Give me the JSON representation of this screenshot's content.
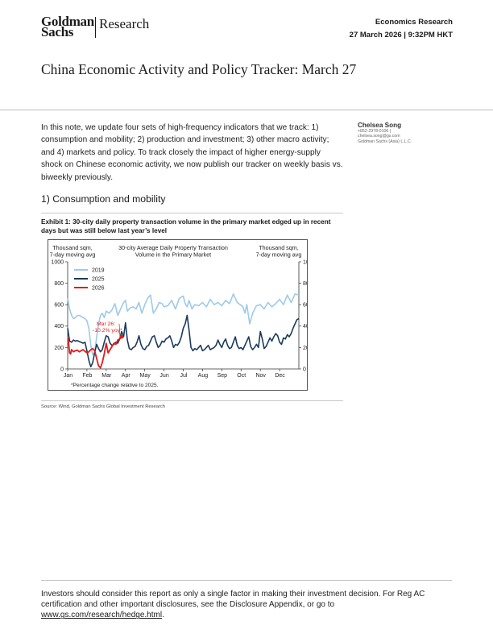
{
  "header": {
    "logo_text": "Goldman Sachs",
    "logo_research": "Research",
    "section": "Economics Research",
    "datetime": "27 March 2026 | 9:32PM HKT"
  },
  "title": "China Economic Activity and Policy Tracker: March 27",
  "intro": "In this note, we update four sets of high-frequency indicators that we track: 1) consumption and mobility; 2) production and investment; 3) other macro activity; and 4) markets and policy. To track closely the impact of higher energy-supply shock on Chinese economic activity, we now publish our tracker on weekly basis vs. biweekly previously.",
  "author": {
    "name": "Chelsea Song",
    "phone": "+852-2978-0106 |",
    "email": "chelsea.song@gs.com",
    "firm": "Goldman Sachs (Asia) L.L.C."
  },
  "section_heading": "1) Consumption and mobility",
  "exhibit_title": "Exhibit 1: 30-city daily property transaction volume in the primary market edged up in recent days but was still below last year’s level",
  "source": "Source: Wind, Goldman Sachs Global Investment Research",
  "disclaimer": {
    "text": "Investors should consider this report as only a single factor in making their investment decision. For Reg AC certification and other important disclosures, see the Disclosure Appendix, or go to ",
    "link": "www.gs.com/research/hedge.html",
    "end": "."
  },
  "colors": {
    "s2019": "#9ecae8",
    "s2025": "#1a3a5c",
    "s2026": "#e31b1b"
  },
  "chart_data": {
    "type": "line",
    "title": "30-city Average Daily Property Transaction Volume in the Primary Market",
    "title_line1": "30-city Average Daily Property Transaction",
    "title_line2": "Volume in the Primary Market",
    "ylabel_left_1": "Thousand sqm,",
    "ylabel_left_2": "7-day moving avg",
    "ylabel_right_1": "Thousand sqm,",
    "ylabel_right_2": "7-day moving avg",
    "ylim": [
      0,
      1000
    ],
    "yticks": [
      0,
      200,
      400,
      600,
      800,
      1000
    ],
    "xlim": [
      0,
      12
    ],
    "months": [
      "Jan",
      "Feb",
      "Mar",
      "Apr",
      "May",
      "Jun",
      "Jul",
      "Aug",
      "Sep",
      "Oct",
      "Nov",
      "Dec"
    ],
    "annotation_line1": "Mar 26:",
    "annotation_line2": "-10.2% yoy*",
    "footnote": "*Percentage change relative to 2025.",
    "x_unit": "month (0 = Jan 1, 12 = Dec 31)",
    "series": [
      {
        "name": "2019",
        "x": [
          0,
          0.1,
          0.2,
          0.3,
          0.4,
          0.5,
          0.6,
          0.7,
          0.8,
          0.9,
          1.0,
          1.1,
          1.2,
          1.3,
          1.4,
          1.5,
          1.6,
          1.7,
          1.8,
          1.9,
          2.0,
          2.15,
          2.3,
          2.45,
          2.6,
          2.75,
          2.9,
          3.0,
          3.1,
          3.25,
          3.4,
          3.55,
          3.7,
          3.85,
          4.0,
          4.15,
          4.3,
          4.45,
          4.6,
          4.75,
          4.9,
          5.0,
          5.2,
          5.4,
          5.6,
          5.8,
          6.0,
          6.1,
          6.2,
          6.3,
          6.45,
          6.6,
          6.8,
          7.0,
          7.2,
          7.4,
          7.6,
          7.8,
          8.0,
          8.2,
          8.4,
          8.6,
          8.8,
          8.95,
          9.1,
          9.2,
          9.3,
          9.45,
          9.6,
          9.8,
          10.0,
          10.2,
          10.4,
          10.6,
          10.8,
          11.0,
          11.2,
          11.4,
          11.6,
          11.8,
          12.0
        ],
        "values": [
          660,
          560,
          500,
          470,
          480,
          500,
          500,
          490,
          480,
          470,
          450,
          380,
          220,
          130,
          160,
          290,
          420,
          500,
          520,
          480,
          540,
          520,
          550,
          610,
          500,
          560,
          620,
          640,
          540,
          570,
          580,
          560,
          620,
          520,
          600,
          660,
          690,
          520,
          560,
          620,
          610,
          580,
          590,
          640,
          560,
          660,
          680,
          610,
          580,
          640,
          560,
          600,
          590,
          620,
          580,
          650,
          600,
          620,
          590,
          640,
          610,
          700,
          620,
          600,
          580,
          520,
          600,
          420,
          520,
          590,
          600,
          560,
          620,
          580,
          610,
          650,
          600,
          690,
          620,
          700,
          690
        ]
      },
      {
        "name": "2025",
        "x": [
          0,
          0.1,
          0.2,
          0.3,
          0.4,
          0.5,
          0.6,
          0.7,
          0.8,
          0.9,
          1.0,
          1.1,
          1.2,
          1.3,
          1.4,
          1.5,
          1.6,
          1.7,
          1.8,
          1.9,
          2.0,
          2.1,
          2.2,
          2.3,
          2.4,
          2.5,
          2.6,
          2.7,
          2.8,
          2.9,
          3.0,
          3.1,
          3.2,
          3.3,
          3.4,
          3.5,
          3.6,
          3.7,
          3.8,
          3.9,
          4.0,
          4.1,
          4.2,
          4.3,
          4.4,
          4.5,
          4.6,
          4.7,
          4.8,
          4.9,
          5.0,
          5.1,
          5.2,
          5.3,
          5.4,
          5.5,
          5.6,
          5.7,
          5.8,
          5.9,
          6.0,
          6.1,
          6.2,
          6.3,
          6.4,
          6.5,
          6.6,
          6.7,
          6.8,
          6.9,
          7.0,
          7.1,
          7.2,
          7.3,
          7.4,
          7.5,
          7.6,
          7.7,
          7.8,
          7.9,
          8.0,
          8.1,
          8.2,
          8.3,
          8.4,
          8.5,
          8.6,
          8.7,
          8.8,
          8.9,
          9.0,
          9.1,
          9.2,
          9.3,
          9.4,
          9.5,
          9.6,
          9.7,
          9.8,
          9.9,
          10.0,
          10.1,
          10.2,
          10.3,
          10.4,
          10.5,
          10.6,
          10.7,
          10.8,
          10.9,
          11.0,
          11.1,
          11.2,
          11.3,
          11.4,
          11.5,
          11.6,
          11.7,
          11.8,
          11.9,
          12.0
        ],
        "values": [
          380,
          260,
          250,
          270,
          260,
          265,
          255,
          250,
          240,
          250,
          170,
          80,
          20,
          60,
          150,
          230,
          190,
          160,
          180,
          250,
          310,
          300,
          240,
          220,
          230,
          250,
          240,
          280,
          350,
          300,
          430,
          270,
          190,
          180,
          200,
          210,
          250,
          310,
          230,
          190,
          180,
          210,
          220,
          260,
          300,
          310,
          250,
          200,
          220,
          260,
          250,
          280,
          290,
          310,
          260,
          200,
          230,
          220,
          250,
          300,
          380,
          420,
          500,
          360,
          200,
          170,
          190,
          180,
          200,
          220,
          170,
          180,
          200,
          220,
          180,
          190,
          200,
          220,
          270,
          230,
          200,
          250,
          280,
          220,
          190,
          200,
          250,
          300,
          220,
          190,
          200,
          180,
          220,
          260,
          300,
          210,
          180,
          200,
          230,
          200,
          350,
          280,
          190,
          210,
          250,
          290,
          260,
          300,
          330,
          310,
          250,
          230,
          290,
          280,
          320,
          300,
          330,
          380,
          420,
          460,
          470
        ]
      },
      {
        "name": "2026",
        "x": [
          0.02,
          0.1,
          0.15,
          0.2,
          0.3,
          0.4,
          0.5,
          0.6,
          0.7,
          0.8,
          0.9,
          1.0,
          1.1,
          1.2,
          1.3,
          1.4,
          1.5,
          1.6,
          1.7,
          1.8,
          1.9,
          2.0,
          2.1,
          2.2,
          2.3,
          2.4,
          2.5,
          2.6,
          2.7,
          2.8
        ],
        "values": [
          290,
          150,
          140,
          180,
          160,
          170,
          175,
          160,
          170,
          180,
          165,
          150,
          160,
          180,
          190,
          170,
          100,
          30,
          10,
          60,
          140,
          240,
          150,
          180,
          210,
          240,
          230,
          270,
          280,
          300
        ]
      }
    ]
  }
}
